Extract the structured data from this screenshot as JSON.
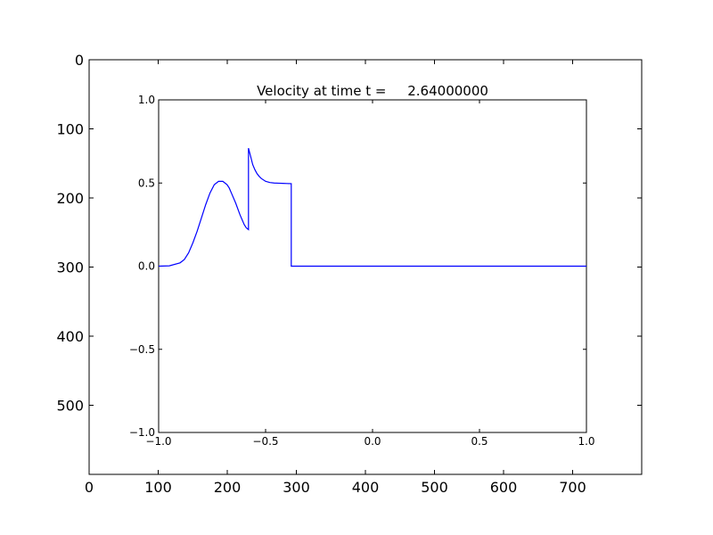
{
  "chart_data": [
    {
      "type": "image-axes",
      "title": "",
      "xlabel": "",
      "ylabel": "",
      "xlim": [
        0,
        800
      ],
      "ylim": [
        600,
        0
      ],
      "xticks": [
        0,
        100,
        200,
        300,
        400,
        500,
        600,
        700
      ],
      "yticks": [
        0,
        100,
        200,
        300,
        400,
        500
      ],
      "xtick_labels": [
        "0",
        "100",
        "200",
        "300",
        "400",
        "500",
        "600",
        "700"
      ],
      "ytick_labels": [
        "0",
        "100",
        "200",
        "300",
        "400",
        "500"
      ],
      "y_inverted": true,
      "grid": false
    },
    {
      "type": "line",
      "title": "Velocity at time t =     2.64000000",
      "xlabel": "",
      "ylabel": "",
      "xlim": [
        -1.0,
        1.0
      ],
      "ylim": [
        -1.0,
        1.0
      ],
      "xticks": [
        -1.0,
        -0.5,
        0.0,
        0.5,
        1.0
      ],
      "yticks": [
        -1.0,
        -0.5,
        0.0,
        0.5,
        1.0
      ],
      "xtick_labels": [
        "−1.0",
        "−0.5",
        "0.0",
        "0.5",
        "1.0"
      ],
      "ytick_labels": [
        "−1.0",
        "−0.5",
        "0.0",
        "0.5",
        "1.0"
      ],
      "grid": false,
      "line_color": "#0000ff",
      "series": [
        {
          "x": [
            -1.0,
            -0.95,
            -0.9,
            -0.88,
            -0.86,
            -0.84,
            -0.82,
            -0.8,
            -0.78,
            -0.76,
            -0.74,
            -0.72,
            -0.7,
            -0.68,
            -0.67,
            -0.66,
            -0.64,
            -0.62,
            -0.6,
            -0.59,
            -0.58,
            -0.58,
            -0.57,
            -0.56,
            -0.55,
            -0.54,
            -0.53,
            -0.52,
            -0.5,
            -0.48,
            -0.46,
            -0.44,
            -0.42,
            -0.4,
            -0.38,
            -0.38,
            -0.375,
            -0.2,
            0.0,
            0.2,
            0.4,
            0.6,
            0.8,
            1.0
          ],
          "y": [
            0.0,
            0.002,
            0.02,
            0.04,
            0.08,
            0.14,
            0.21,
            0.29,
            0.37,
            0.44,
            0.49,
            0.51,
            0.51,
            0.49,
            0.47,
            0.44,
            0.38,
            0.31,
            0.25,
            0.23,
            0.22,
            0.71,
            0.66,
            0.61,
            0.58,
            0.556,
            0.54,
            0.527,
            0.51,
            0.503,
            0.5,
            0.499,
            0.498,
            0.497,
            0.496,
            0.0,
            0.0,
            0.0,
            0.0,
            0.0,
            0.0,
            0.0,
            0.0,
            0.0
          ]
        }
      ]
    }
  ]
}
